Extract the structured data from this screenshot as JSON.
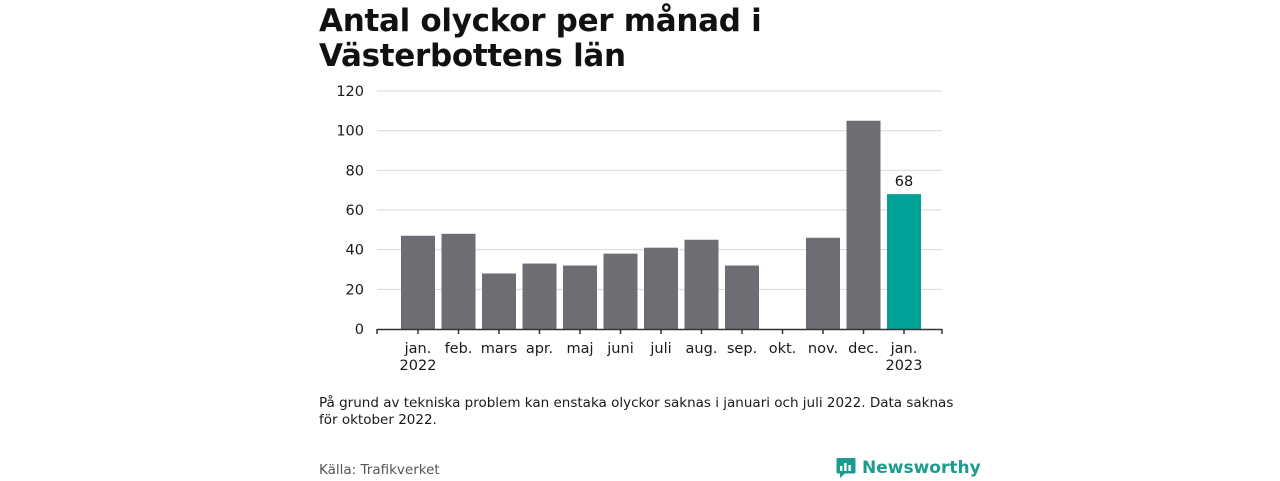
{
  "title": "Antal olyckor per månad i Västerbottens län",
  "note": "På grund av tekniska problem kan enstaka olyckor saknas i januari och juli 2022. Data saknas för oktober 2022.",
  "source": "Källa: Trafikverket",
  "brand": {
    "name": "Newsworthy",
    "icon": "newsworthy-logo-icon"
  },
  "colors": {
    "bar": "#6e6d73",
    "highlight": "#00a29a",
    "grid": "#d9d9d9",
    "axis": "#333333",
    "text": "#1a1a1a"
  },
  "chart_data": {
    "type": "bar",
    "title": "Antal olyckor per månad i Västerbottens län",
    "xlabel": "",
    "ylabel": "",
    "ylim": [
      0,
      120
    ],
    "yticks": [
      "0",
      "20",
      "40",
      "60",
      "80",
      "100",
      "120"
    ],
    "grid": true,
    "categories": [
      {
        "month": "jan.",
        "year": "2022"
      },
      {
        "month": "feb.",
        "year": ""
      },
      {
        "month": "mars",
        "year": ""
      },
      {
        "month": "apr.",
        "year": ""
      },
      {
        "month": "maj",
        "year": ""
      },
      {
        "month": "juni",
        "year": ""
      },
      {
        "month": "juli",
        "year": ""
      },
      {
        "month": "aug.",
        "year": ""
      },
      {
        "month": "sep.",
        "year": ""
      },
      {
        "month": "okt.",
        "year": ""
      },
      {
        "month": "nov.",
        "year": ""
      },
      {
        "month": "dec.",
        "year": ""
      },
      {
        "month": "jan.",
        "year": "2023"
      }
    ],
    "values": [
      47,
      48,
      28,
      33,
      32,
      38,
      41,
      45,
      32,
      null,
      46,
      105,
      68
    ],
    "highlight_index": 12,
    "data_labels": [
      {
        "index": 12,
        "text": "68"
      }
    ]
  }
}
